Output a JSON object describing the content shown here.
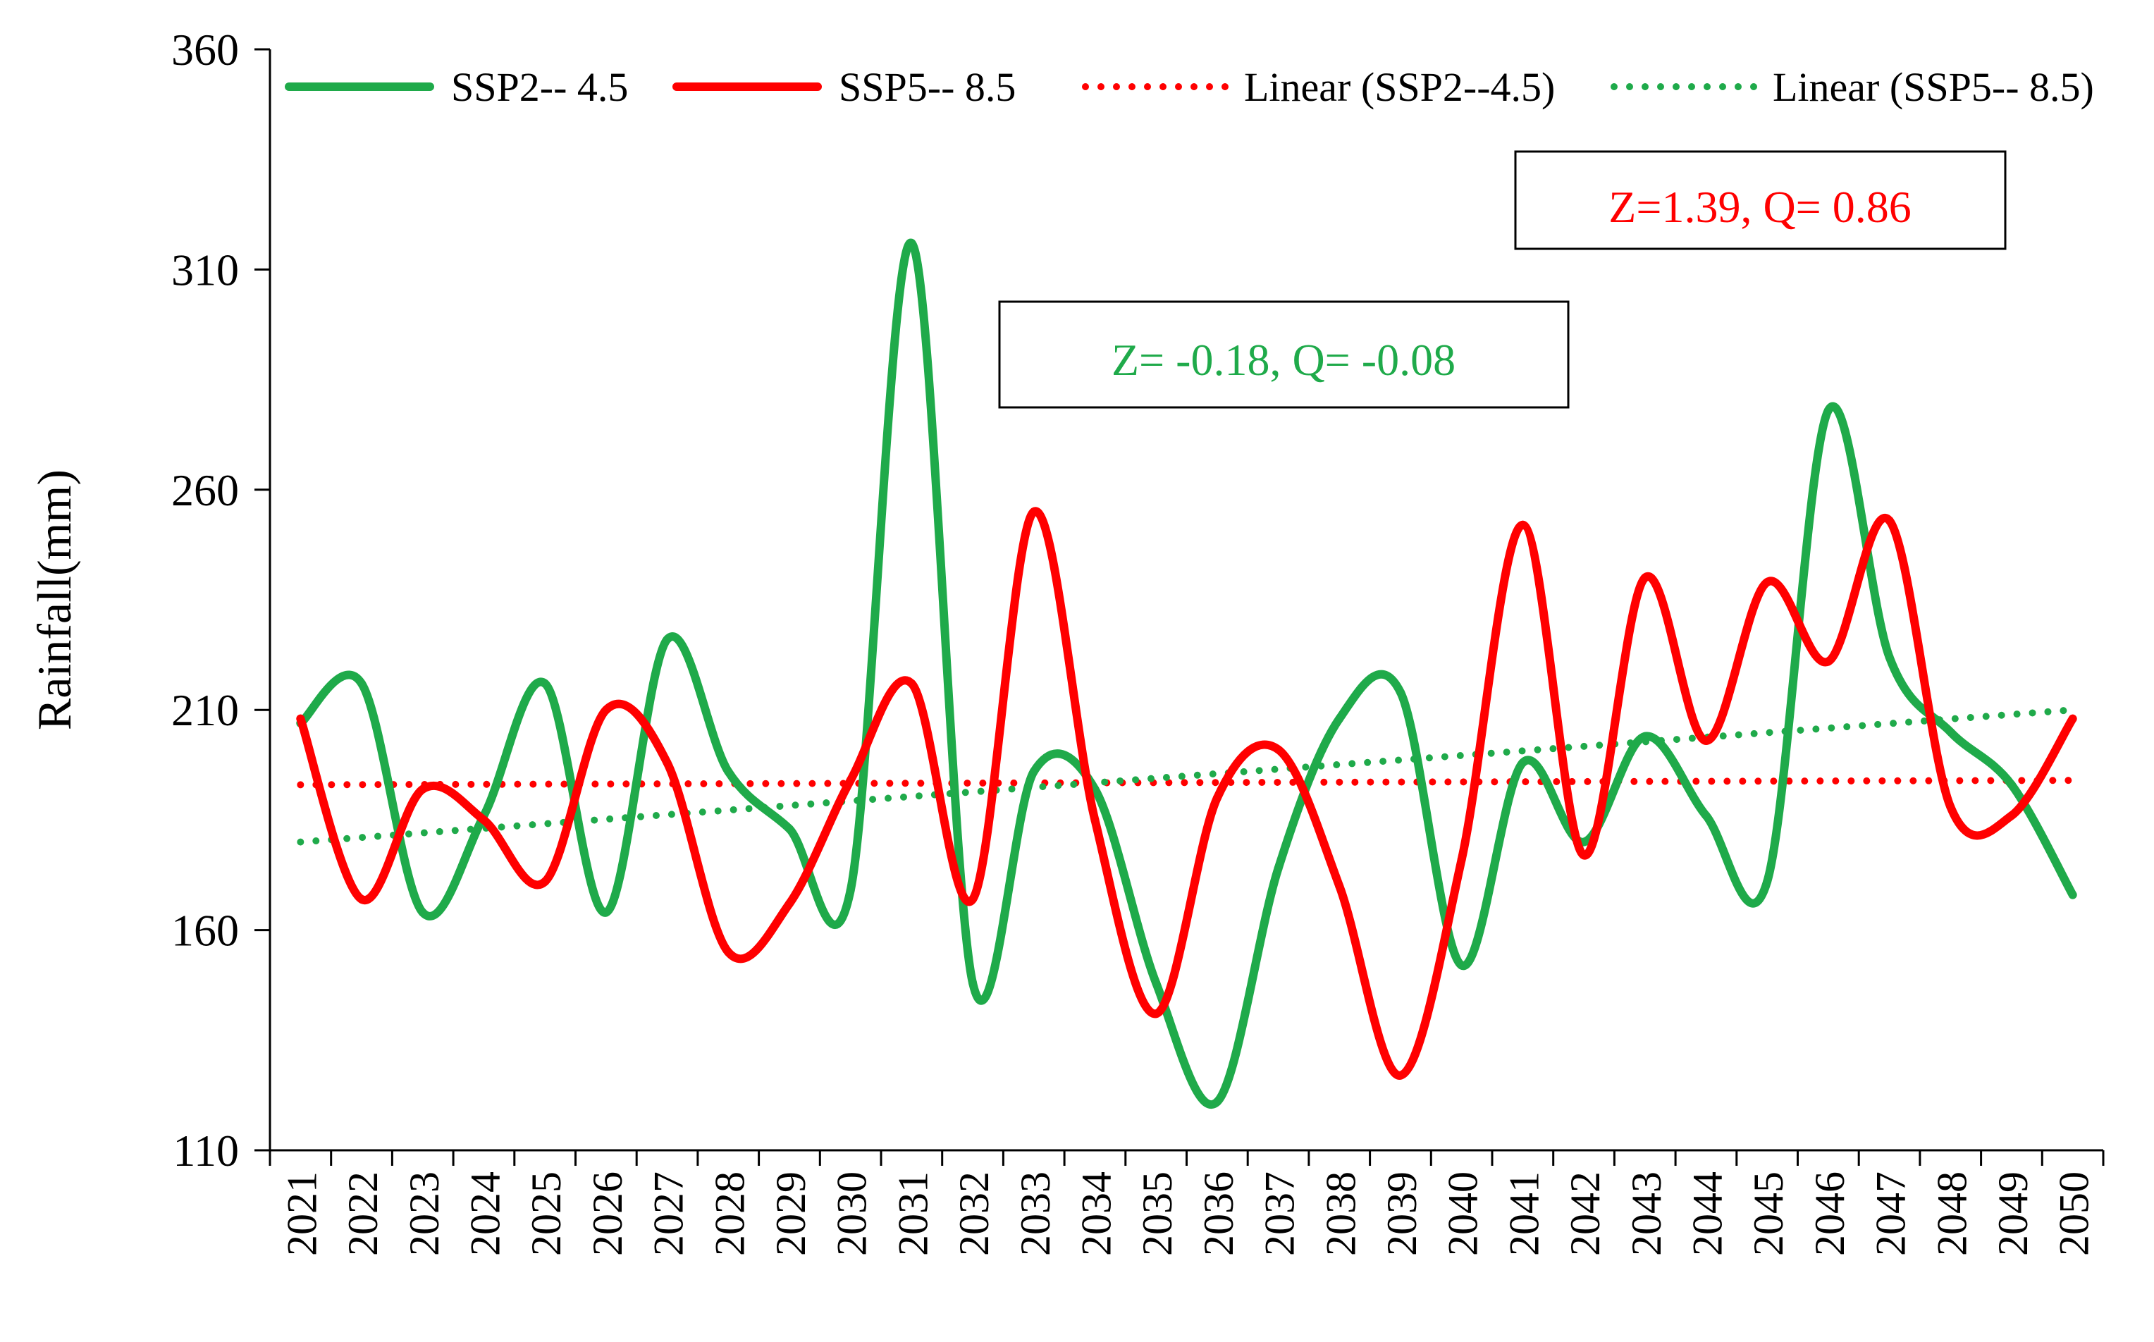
{
  "chart_data": {
    "type": "line",
    "title": "",
    "xlabel": "",
    "ylabel": "Rainfall(mm)",
    "ylim": [
      110,
      360
    ],
    "yticks": [
      110,
      160,
      210,
      260,
      310,
      360
    ],
    "grid": false,
    "legend_position": "top",
    "categories": [
      "2021",
      "2022",
      "2023",
      "2024",
      "2025",
      "2026",
      "2027",
      "2028",
      "2029",
      "2030",
      "2031",
      "2032",
      "2033",
      "2034",
      "2035",
      "2036",
      "2037",
      "2038",
      "2039",
      "2040",
      "2041",
      "2042",
      "2043",
      "2044",
      "2045",
      "2046",
      "2047",
      "2048",
      "2049",
      "2050"
    ],
    "series": [
      {
        "name": "SSP2-- 4.5",
        "color": "#1faa4a",
        "style": "solid",
        "values": [
          207,
          216,
          164,
          186,
          216,
          164,
          226,
          196,
          183,
          169,
          316,
          148,
          196,
          192,
          148,
          121,
          174,
          208,
          214,
          152,
          198,
          180,
          204,
          186,
          171,
          278,
          222,
          205,
          193,
          168
        ]
      },
      {
        "name": "SSP5-- 8.5",
        "color": "#ff0000",
        "style": "solid",
        "values": [
          208,
          167,
          192,
          185,
          171,
          210,
          198,
          155,
          166,
          194,
          216,
          167,
          255,
          185,
          141,
          190,
          201,
          170,
          127,
          176,
          252,
          177,
          240,
          203,
          239,
          221,
          253,
          188,
          186,
          208
        ]
      }
    ],
    "trendlines": [
      {
        "name": "Linear (SSP2--4.5)",
        "color": "#ff0000",
        "style": "dotted",
        "start": 193.0,
        "end": 194.0
      },
      {
        "name": "Linear (SSP5-- 8.5)",
        "color": "#1faa4a",
        "style": "dotted",
        "start": 180.0,
        "end": 210.0
      }
    ],
    "annotations": [
      {
        "text": "Z= -0.18,  Q= -0.08",
        "color": "#1faa4a"
      },
      {
        "text": "Z=1.39,  Q= 0.86",
        "color": "#ff0000"
      }
    ]
  }
}
